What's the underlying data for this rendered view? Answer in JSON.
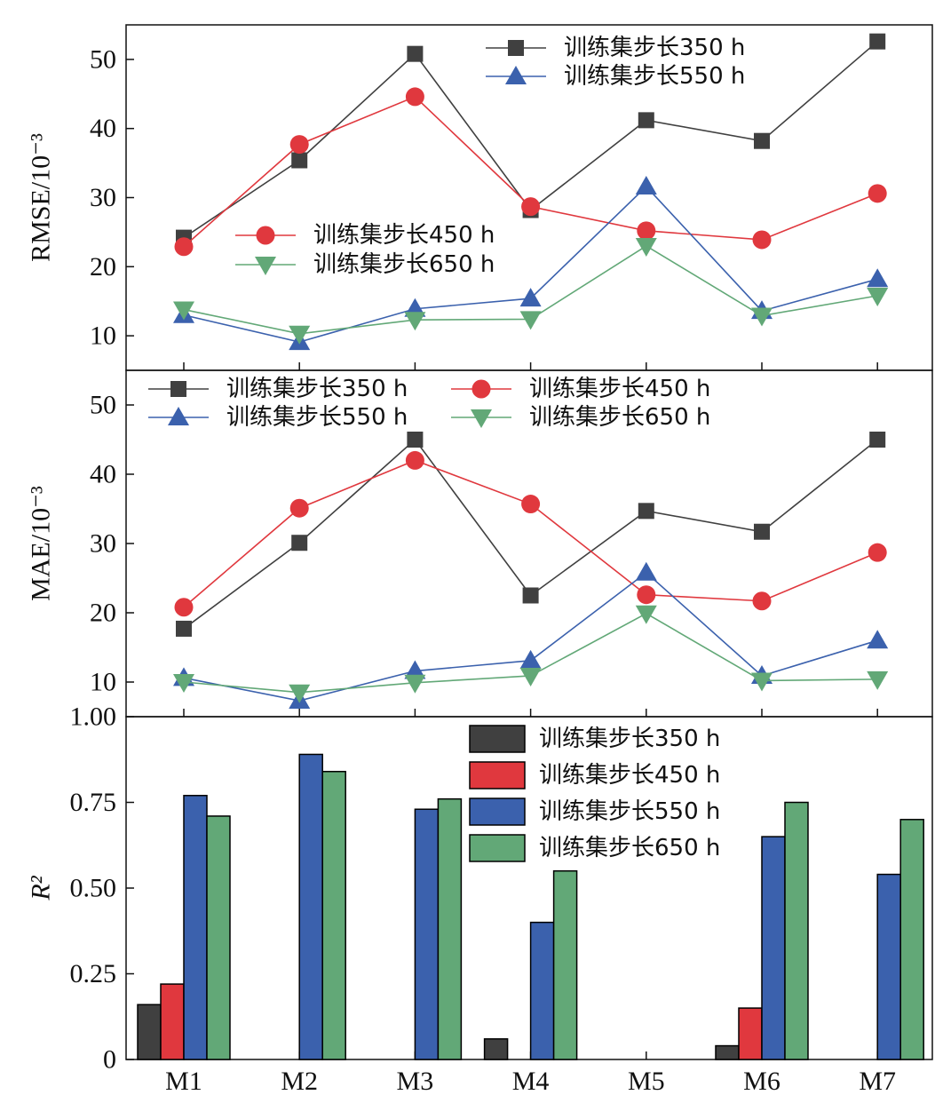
{
  "colors": {
    "s350": "#404040",
    "s450": "#e0383e",
    "s550": "#3b61ad",
    "s650": "#62a877",
    "axis": "#111111"
  },
  "chart_data": [
    {
      "type": "line",
      "id": "rmse",
      "ylabel": "RMSE/10⁻³",
      "ylim": [
        5,
        55
      ],
      "yticks": [
        10,
        20,
        30,
        40,
        50
      ],
      "categories": [
        "M1",
        "M2",
        "M3",
        "M4",
        "M5",
        "M6",
        "M7"
      ],
      "series": [
        {
          "key": "s350",
          "name": "训练集步长350 h",
          "marker": "square",
          "values": [
            24.2,
            35.4,
            50.8,
            28.2,
            41.2,
            38.2,
            52.6
          ]
        },
        {
          "key": "s450",
          "name": "训练集步长450 h",
          "marker": "circle",
          "values": [
            22.9,
            37.7,
            44.6,
            28.7,
            25.2,
            23.9,
            30.6
          ]
        },
        {
          "key": "s550",
          "name": "训练集步长550 h",
          "marker": "triangle-up",
          "values": [
            13.0,
            9.1,
            13.9,
            15.4,
            31.6,
            13.6,
            18.2
          ]
        },
        {
          "key": "s650",
          "name": "训练集步长650 h",
          "marker": "triangle-down",
          "values": [
            13.8,
            10.3,
            12.3,
            12.4,
            23.0,
            12.9,
            15.8
          ]
        }
      ]
    },
    {
      "type": "line",
      "id": "mae",
      "ylabel": "MAE/10⁻³",
      "ylim": [
        5,
        55
      ],
      "yticks": [
        10,
        20,
        30,
        40,
        50
      ],
      "categories": [
        "M1",
        "M2",
        "M3",
        "M4",
        "M5",
        "M6",
        "M7"
      ],
      "series": [
        {
          "key": "s350",
          "name": "训练集步长350 h",
          "marker": "square",
          "values": [
            17.7,
            30.1,
            45.0,
            22.5,
            34.7,
            31.7,
            45.0
          ]
        },
        {
          "key": "s450",
          "name": "训练集步长450 h",
          "marker": "circle",
          "values": [
            20.8,
            35.1,
            42.0,
            35.7,
            22.6,
            21.7,
            28.7
          ]
        },
        {
          "key": "s550",
          "name": "训练集步长550 h",
          "marker": "triangle-up",
          "values": [
            10.6,
            7.3,
            11.6,
            13.1,
            25.8,
            10.9,
            16.0
          ]
        },
        {
          "key": "s650",
          "name": "训练集步长650 h",
          "marker": "triangle-down",
          "values": [
            10.0,
            8.5,
            9.9,
            10.9,
            19.9,
            10.2,
            10.4
          ]
        }
      ]
    },
    {
      "type": "bar",
      "id": "r2",
      "ylabel": "R²",
      "ylim": [
        0,
        1.0
      ],
      "yticks": [
        0,
        0.25,
        0.5,
        0.75,
        1.0
      ],
      "ytick_labels": [
        "0",
        "0.25",
        "0.50",
        "0.75",
        "1.00"
      ],
      "categories": [
        "M1",
        "M2",
        "M3",
        "M4",
        "M5",
        "M6",
        "M7"
      ],
      "series": [
        {
          "key": "s350",
          "name": "训练集步长350 h",
          "values": [
            0.16,
            0,
            0,
            0.06,
            0,
            0.04,
            0
          ]
        },
        {
          "key": "s450",
          "name": "训练集步长450 h",
          "values": [
            0.22,
            0,
            0,
            0,
            0,
            0.15,
            0
          ]
        },
        {
          "key": "s550",
          "name": "训练集步长550 h",
          "values": [
            0.77,
            0.89,
            0.73,
            0.4,
            0,
            0.65,
            0.54
          ]
        },
        {
          "key": "s650",
          "name": "训练集步长650 h",
          "values": [
            0.71,
            0.84,
            0.76,
            0.55,
            0,
            0.75,
            0.7
          ]
        }
      ]
    }
  ]
}
